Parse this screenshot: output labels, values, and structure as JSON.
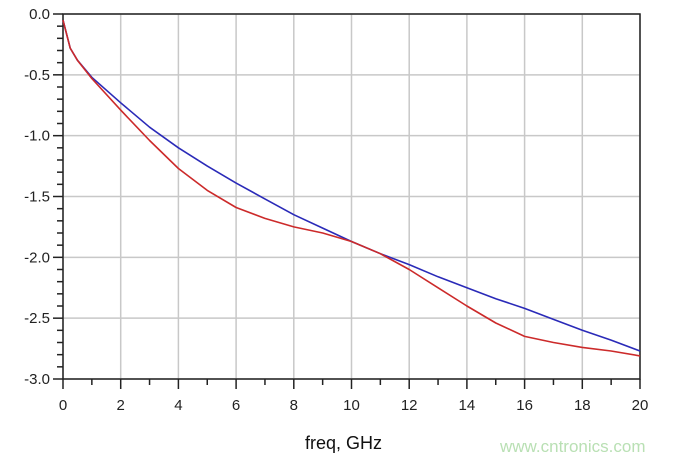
{
  "chart_data": {
    "type": "line",
    "title": "",
    "xlabel": "freq, GHz",
    "ylabel": "",
    "xlim": [
      0,
      20
    ],
    "ylim": [
      -3.0,
      0.0
    ],
    "xticks": [
      "0",
      "2",
      "4",
      "6",
      "8",
      "10",
      "12",
      "14",
      "16",
      "18",
      "20"
    ],
    "yticks": [
      "0.0",
      "-0.5",
      "-1.0",
      "-1.5",
      "-2.0",
      "-2.5",
      "-3.0"
    ],
    "grid": true,
    "x": [
      0,
      0.25,
      0.5,
      1,
      2,
      3,
      4,
      5,
      6,
      7,
      8,
      9,
      10,
      11,
      12,
      13,
      14,
      15,
      16,
      17,
      18,
      19,
      20
    ],
    "series": [
      {
        "color": "#2a2ab8",
        "values": [
          -0.05,
          -0.28,
          -0.38,
          -0.52,
          -0.73,
          -0.93,
          -1.1,
          -1.25,
          -1.39,
          -1.52,
          -1.65,
          -1.76,
          -1.87,
          -1.97,
          -2.06,
          -2.16,
          -2.25,
          -2.34,
          -2.42,
          -2.51,
          -2.6,
          -2.68,
          -2.77
        ]
      },
      {
        "color": "#cc2a2a",
        "values": [
          -0.05,
          -0.28,
          -0.38,
          -0.53,
          -0.79,
          -1.04,
          -1.27,
          -1.45,
          -1.59,
          -1.68,
          -1.75,
          -1.8,
          -1.87,
          -1.97,
          -2.1,
          -2.25,
          -2.4,
          -2.54,
          -2.65,
          -2.7,
          -2.74,
          -2.77,
          -2.81
        ]
      }
    ]
  },
  "watermark": "www.cntronics.com"
}
